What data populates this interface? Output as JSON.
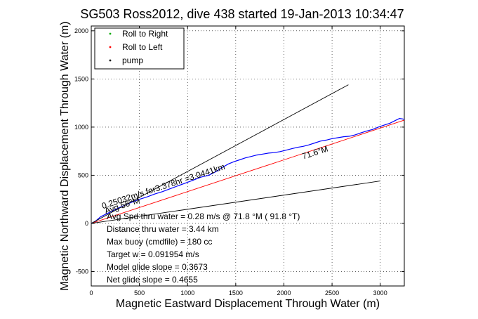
{
  "chart_data": {
    "type": "line",
    "title": "SG503 Ross2012, dive 438 started 19-Jan-2013 10:34:47",
    "xlabel": "Magnetic Eastward Displacement Through Water (m)",
    "ylabel": "Magnetic Northward Displacement Through Water (m)",
    "xlim": [
      0,
      3250
    ],
    "ylim": [
      -650,
      2050
    ],
    "xticks": [
      0,
      500,
      1000,
      1500,
      2000,
      2500,
      3000
    ],
    "yticks": [
      -500,
      0,
      500,
      1000,
      1500,
      2000
    ],
    "grid": true,
    "legend_position": "top-left",
    "legend": [
      {
        "label": "Roll to Right",
        "color": "#00aa00",
        "marker": "dot"
      },
      {
        "label": "Roll to Left",
        "color": "#ff0000",
        "marker": "dot"
      },
      {
        "label": "pump",
        "color": "#000000",
        "marker": "dot"
      }
    ],
    "series": [
      {
        "color": "#0000ff",
        "x": [
          0,
          40,
          100,
          180,
          260,
          340,
          420,
          500,
          580,
          660,
          740,
          820,
          900,
          980,
          1060,
          1140,
          1220,
          1300,
          1360,
          1420,
          1480,
          1540,
          1600,
          1660,
          1720,
          1780,
          1840,
          1900,
          1960,
          2020,
          2080,
          2140,
          2200,
          2260,
          2320,
          2380,
          2440,
          2500,
          2560,
          2620,
          2680,
          2740,
          2800,
          2860,
          2920,
          2980,
          3040,
          3100,
          3160,
          3200,
          3230,
          3250
        ],
        "y": [
          0,
          20,
          70,
          110,
          150,
          185,
          220,
          250,
          275,
          305,
          330,
          360,
          390,
          420,
          450,
          480,
          500,
          540,
          580,
          615,
          640,
          660,
          680,
          695,
          710,
          720,
          730,
          735,
          745,
          760,
          775,
          790,
          800,
          815,
          835,
          855,
          865,
          880,
          890,
          900,
          905,
          920,
          940,
          960,
          975,
          1000,
          1020,
          1040,
          1070,
          1090,
          1085,
          1080
        ]
      },
      {
        "color": "#ff0000",
        "x": [
          0,
          500,
          1000,
          1500,
          2000,
          2500,
          3000,
          3250
        ],
        "y": [
          0,
          165,
          330,
          495,
          660,
          825,
          990,
          1073
        ]
      },
      {
        "color": "#000000",
        "x": [
          0,
          2670
        ],
        "y": [
          0,
          1440
        ]
      },
      {
        "color": "#000000",
        "x": [
          0,
          3000
        ],
        "y": [
          0,
          440
        ]
      }
    ],
    "annotations": [
      {
        "text": "71.6°M",
        "x": 2200,
        "y": 665,
        "angle": -18
      },
      {
        "text": "0.25032m/s for3.378hr =3.0441km",
        "x": 120,
        "y": 150,
        "angle": -18
      },
      {
        "text": "Avg 56°M",
        "x": 150,
        "y": 100,
        "angle": -18
      }
    ],
    "stats": [
      "Avg Spd thru water =  0.28 m/s @  71.8    °M ( 91.8 °T)",
      "Distance thru water =  3.44 km",
      "Max buoy (cmdfile) = 180 cc",
      "Target w = 0.091954 m/s",
      "Model glide slope = 0.3673",
      "Net glide slope = 0.4655"
    ]
  }
}
